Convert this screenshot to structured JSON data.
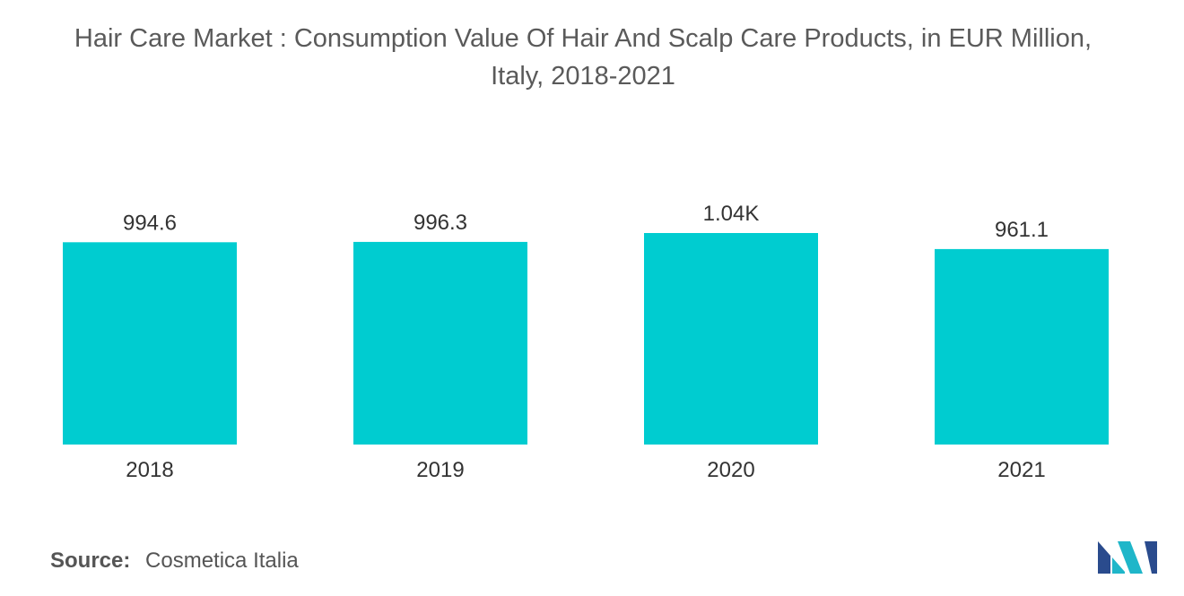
{
  "chart_data": {
    "type": "bar",
    "title": "Hair Care Market : Consumption Value Of Hair And Scalp Care Products, in EUR Million,",
    "subtitle": "Italy, 2018-2021",
    "categories": [
      "2018",
      "2019",
      "2020",
      "2021"
    ],
    "values": [
      994.6,
      996.3,
      1040,
      961.1
    ],
    "data_labels": [
      "994.6",
      "996.3",
      "1.04K",
      "961.1"
    ],
    "xlabel": "",
    "ylabel": "",
    "ylim": [
      0,
      1040
    ],
    "grid": false,
    "legend": "none",
    "bar_color": "#00ccd0"
  },
  "source": {
    "label": "Source:",
    "value": "Cosmetica Italia"
  },
  "logo": {
    "icon": "mordor-intelligence-logo",
    "colors": [
      "#2a4b8d",
      "#1fb6c9"
    ]
  }
}
